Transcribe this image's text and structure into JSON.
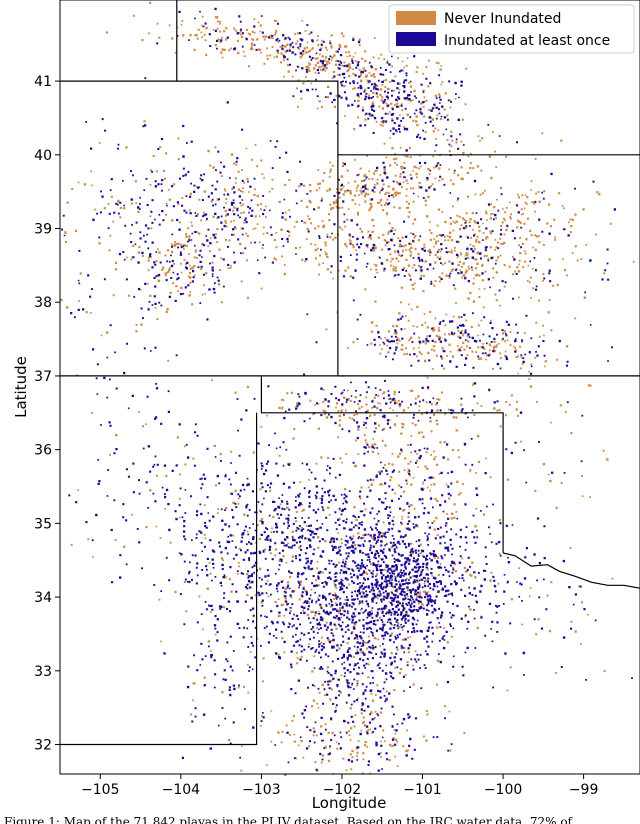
{
  "chart_data": {
    "type": "scatter",
    "title": "",
    "xlabel": "Longitude",
    "ylabel": "Latitude",
    "xlim": [
      -105.5,
      -98.3
    ],
    "ylim": [
      31.6,
      42.1
    ],
    "x_ticks": [
      -105,
      -104,
      -103,
      -102,
      -101,
      -100,
      -99
    ],
    "y_ticks": [
      32,
      33,
      34,
      35,
      36,
      37,
      38,
      39,
      40,
      41
    ],
    "grid": false,
    "legend_position": "top-right",
    "series": [
      {
        "name": "Never Inundated",
        "color": "#d08a46"
      },
      {
        "name": "Inundated at least once",
        "color": "#1a0a96"
      }
    ]
  },
  "caption": "Figure 1: Map of the 71,842 playas in the PLJV dataset. Based on the JRC water data, 72% of"
}
